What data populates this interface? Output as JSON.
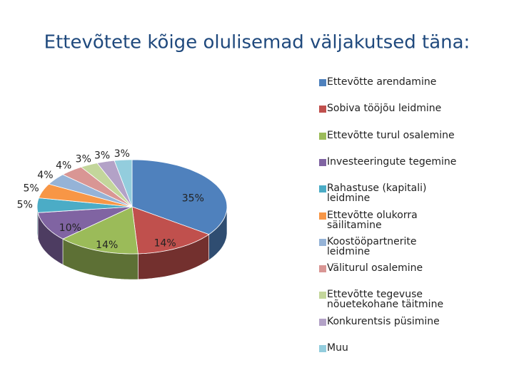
{
  "chart_data": {
    "type": "pie",
    "title": "Ettevõtete kõige olulisemad väljakutsed täna:",
    "categories": [
      "Ettevõtte arendamine",
      "Sobiva tööjõu leidmine",
      "Ettevõtte turul osalemine",
      "Investeeringute tegemine",
      "Rahastuse (kapitali) leidmine",
      "Ettevõtte olukorra säilitamine",
      "Koostööpartnerite leidmine",
      "Väliturul osalemine",
      "Ettevõtte tegevuse nõuetekohane täitmine",
      "Konkurentsis püsimine",
      "Muu"
    ],
    "values": [
      35,
      14,
      14,
      10,
      5,
      5,
      4,
      4,
      3,
      3,
      3
    ],
    "value_labels": [
      "35%",
      "14%",
      "14%",
      "10%",
      "5%",
      "5%",
      "4%",
      "4%",
      "3%",
      "3%",
      "3%"
    ],
    "colors": [
      "#4f81bd",
      "#c0504d",
      "#9bbb59",
      "#8064a2",
      "#4bacc6",
      "#f79646",
      "#95b3d7",
      "#d99694",
      "#c3d69b",
      "#b3a2c7",
      "#93cddd"
    ],
    "legend": "right"
  }
}
